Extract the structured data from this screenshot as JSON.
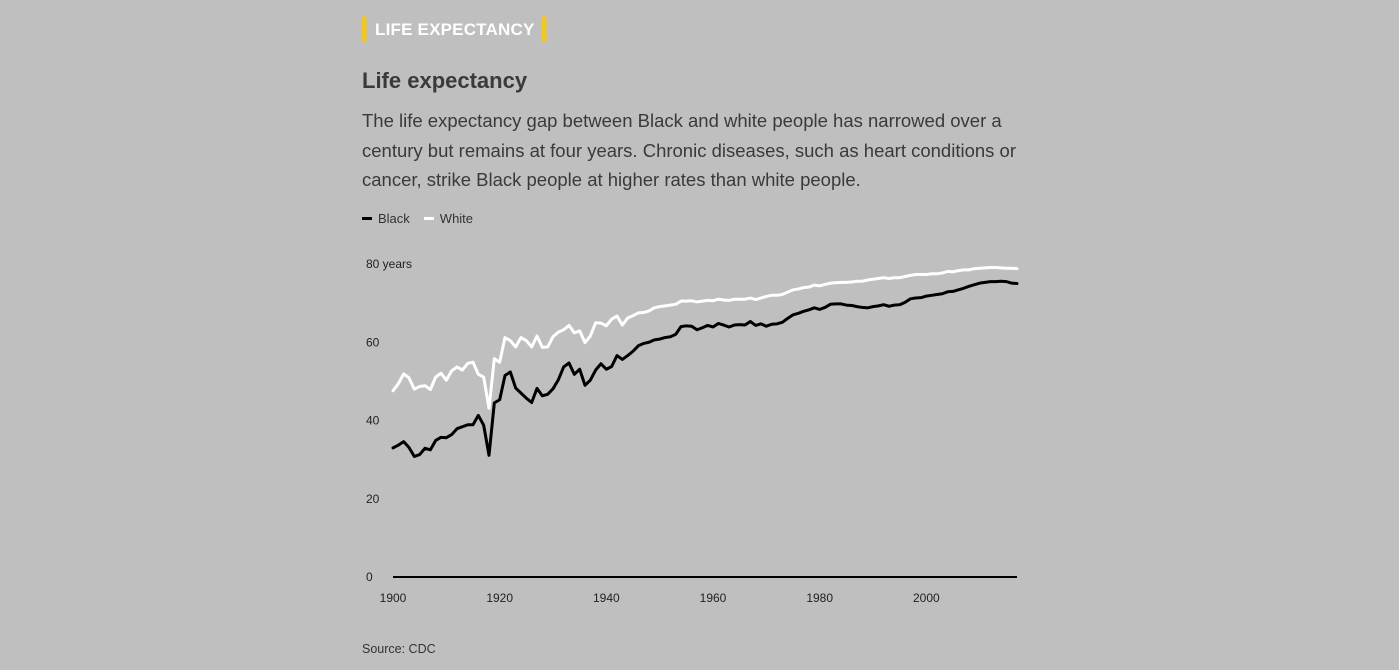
{
  "kicker": "LIFE EXPECTANCY",
  "title": "Life expectancy",
  "subtitle": "The life expectancy gap between Black and white people has narrowed over a century but remains at four years. Chronic diseases, such as heart conditions or cancer, strike Black people at higher rates than white people.",
  "source": "Source: CDC",
  "colors": {
    "background": "#bfbfbf",
    "kicker_accent": "#f2c81e",
    "black_series": "#000000",
    "white_series": "#ffffff"
  },
  "chart_data": {
    "type": "line",
    "title": "Life expectancy",
    "xlabel": "",
    "ylabel": "",
    "xlim": [
      1900,
      2017
    ],
    "ylim": [
      0,
      80
    ],
    "x_ticks": [
      {
        "value": 1900,
        "label": "1900"
      },
      {
        "value": 1920,
        "label": "1920"
      },
      {
        "value": 1940,
        "label": "1940"
      },
      {
        "value": 1960,
        "label": "1960"
      },
      {
        "value": 1980,
        "label": "1980"
      },
      {
        "value": 2000,
        "label": "2000"
      }
    ],
    "y_ticks": [
      {
        "value": 0,
        "label": "0"
      },
      {
        "value": 20,
        "label": "20"
      },
      {
        "value": 40,
        "label": "40"
      },
      {
        "value": 60,
        "label": "60"
      },
      {
        "value": 80,
        "label": "80 years"
      }
    ],
    "grid": false,
    "legend_placement": "top-left",
    "series": [
      {
        "name": "Black",
        "color": "#000000",
        "points": [
          [
            1900,
            33.0
          ],
          [
            1901,
            33.7
          ],
          [
            1902,
            34.6
          ],
          [
            1903,
            33.1
          ],
          [
            1904,
            30.8
          ],
          [
            1905,
            31.3
          ],
          [
            1906,
            32.9
          ],
          [
            1907,
            32.5
          ],
          [
            1908,
            34.9
          ],
          [
            1909,
            35.7
          ],
          [
            1910,
            35.6
          ],
          [
            1911,
            36.4
          ],
          [
            1912,
            37.9
          ],
          [
            1913,
            38.4
          ],
          [
            1914,
            38.9
          ],
          [
            1915,
            38.9
          ],
          [
            1916,
            41.3
          ],
          [
            1917,
            38.8
          ],
          [
            1918,
            31.1
          ],
          [
            1919,
            44.5
          ],
          [
            1920,
            45.3
          ],
          [
            1921,
            51.5
          ],
          [
            1922,
            52.4
          ],
          [
            1923,
            48.3
          ],
          [
            1924,
            47.0
          ],
          [
            1925,
            45.7
          ],
          [
            1926,
            44.6
          ],
          [
            1927,
            48.2
          ],
          [
            1928,
            46.3
          ],
          [
            1929,
            46.7
          ],
          [
            1930,
            48.1
          ],
          [
            1931,
            50.4
          ],
          [
            1932,
            53.7
          ],
          [
            1933,
            54.7
          ],
          [
            1934,
            51.8
          ],
          [
            1935,
            53.1
          ],
          [
            1936,
            49.0
          ],
          [
            1937,
            50.3
          ],
          [
            1938,
            52.9
          ],
          [
            1939,
            54.5
          ],
          [
            1940,
            53.1
          ],
          [
            1941,
            53.8
          ],
          [
            1942,
            56.6
          ],
          [
            1943,
            55.6
          ],
          [
            1944,
            56.6
          ],
          [
            1945,
            57.7
          ],
          [
            1946,
            59.1
          ],
          [
            1947,
            59.7
          ],
          [
            1948,
            60.0
          ],
          [
            1949,
            60.6
          ],
          [
            1950,
            60.8
          ],
          [
            1951,
            61.2
          ],
          [
            1952,
            61.4
          ],
          [
            1953,
            62.0
          ],
          [
            1954,
            64.0
          ],
          [
            1955,
            64.2
          ],
          [
            1956,
            64.1
          ],
          [
            1957,
            63.2
          ],
          [
            1958,
            63.7
          ],
          [
            1959,
            64.3
          ],
          [
            1960,
            63.9
          ],
          [
            1961,
            64.8
          ],
          [
            1962,
            64.4
          ],
          [
            1963,
            63.9
          ],
          [
            1964,
            64.4
          ],
          [
            1965,
            64.5
          ],
          [
            1966,
            64.4
          ],
          [
            1967,
            65.3
          ],
          [
            1968,
            64.3
          ],
          [
            1969,
            64.7
          ],
          [
            1970,
            64.1
          ],
          [
            1971,
            64.6
          ],
          [
            1972,
            64.7
          ],
          [
            1973,
            65.1
          ],
          [
            1974,
            66.1
          ],
          [
            1975,
            67.0
          ],
          [
            1976,
            67.4
          ],
          [
            1977,
            67.9
          ],
          [
            1978,
            68.3
          ],
          [
            1979,
            68.8
          ],
          [
            1980,
            68.4
          ],
          [
            1981,
            68.9
          ],
          [
            1982,
            69.7
          ],
          [
            1983,
            69.8
          ],
          [
            1984,
            69.8
          ],
          [
            1985,
            69.5
          ],
          [
            1986,
            69.4
          ],
          [
            1987,
            69.1
          ],
          [
            1988,
            68.9
          ],
          [
            1989,
            68.8
          ],
          [
            1990,
            69.1
          ],
          [
            1991,
            69.3
          ],
          [
            1992,
            69.6
          ],
          [
            1993,
            69.2
          ],
          [
            1994,
            69.5
          ],
          [
            1995,
            69.6
          ],
          [
            1996,
            70.2
          ],
          [
            1997,
            71.1
          ],
          [
            1998,
            71.3
          ],
          [
            1999,
            71.4
          ],
          [
            2000,
            71.8
          ],
          [
            2001,
            72.0
          ],
          [
            2002,
            72.2
          ],
          [
            2003,
            72.4
          ],
          [
            2004,
            72.9
          ],
          [
            2005,
            73.0
          ],
          [
            2006,
            73.4
          ],
          [
            2007,
            73.8
          ],
          [
            2008,
            74.3
          ],
          [
            2009,
            74.7
          ],
          [
            2010,
            75.1
          ],
          [
            2011,
            75.3
          ],
          [
            2012,
            75.5
          ],
          [
            2013,
            75.5
          ],
          [
            2014,
            75.6
          ],
          [
            2015,
            75.5
          ],
          [
            2016,
            75.1
          ],
          [
            2017,
            75.0
          ]
        ]
      },
      {
        "name": "White",
        "color": "#ffffff",
        "points": [
          [
            1900,
            47.6
          ],
          [
            1901,
            49.4
          ],
          [
            1902,
            51.9
          ],
          [
            1903,
            50.9
          ],
          [
            1904,
            48.0
          ],
          [
            1905,
            48.7
          ],
          [
            1906,
            48.9
          ],
          [
            1907,
            47.9
          ],
          [
            1908,
            51.1
          ],
          [
            1909,
            52.1
          ],
          [
            1910,
            50.3
          ],
          [
            1911,
            52.7
          ],
          [
            1912,
            53.7
          ],
          [
            1913,
            52.9
          ],
          [
            1914,
            54.6
          ],
          [
            1915,
            54.9
          ],
          [
            1916,
            51.8
          ],
          [
            1917,
            51.1
          ],
          [
            1918,
            43.1
          ],
          [
            1919,
            55.8
          ],
          [
            1920,
            54.9
          ],
          [
            1921,
            61.2
          ],
          [
            1922,
            60.4
          ],
          [
            1923,
            58.8
          ],
          [
            1924,
            61.2
          ],
          [
            1925,
            60.4
          ],
          [
            1926,
            58.8
          ],
          [
            1927,
            61.6
          ],
          [
            1928,
            58.7
          ],
          [
            1929,
            58.8
          ],
          [
            1930,
            61.4
          ],
          [
            1931,
            62.6
          ],
          [
            1932,
            63.2
          ],
          [
            1933,
            64.3
          ],
          [
            1934,
            62.4
          ],
          [
            1935,
            62.9
          ],
          [
            1936,
            59.9
          ],
          [
            1937,
            61.6
          ],
          [
            1938,
            65.0
          ],
          [
            1939,
            64.9
          ],
          [
            1940,
            64.2
          ],
          [
            1941,
            65.9
          ],
          [
            1942,
            66.7
          ],
          [
            1943,
            64.4
          ],
          [
            1944,
            66.2
          ],
          [
            1945,
            66.8
          ],
          [
            1946,
            67.5
          ],
          [
            1947,
            67.6
          ],
          [
            1948,
            68.0
          ],
          [
            1949,
            68.8
          ],
          [
            1950,
            69.1
          ],
          [
            1951,
            69.3
          ],
          [
            1952,
            69.5
          ],
          [
            1953,
            69.7
          ],
          [
            1954,
            70.5
          ],
          [
            1955,
            70.5
          ],
          [
            1956,
            70.6
          ],
          [
            1957,
            70.3
          ],
          [
            1958,
            70.5
          ],
          [
            1959,
            70.7
          ],
          [
            1960,
            70.6
          ],
          [
            1961,
            71.0
          ],
          [
            1962,
            70.8
          ],
          [
            1963,
            70.7
          ],
          [
            1964,
            71.0
          ],
          [
            1965,
            71.0
          ],
          [
            1966,
            71.0
          ],
          [
            1967,
            71.3
          ],
          [
            1968,
            70.9
          ],
          [
            1969,
            71.3
          ],
          [
            1970,
            71.7
          ],
          [
            1971,
            72.0
          ],
          [
            1972,
            72.0
          ],
          [
            1973,
            72.2
          ],
          [
            1974,
            72.8
          ],
          [
            1975,
            73.4
          ],
          [
            1976,
            73.6
          ],
          [
            1977,
            74.0
          ],
          [
            1978,
            74.1
          ],
          [
            1979,
            74.6
          ],
          [
            1980,
            74.4
          ],
          [
            1981,
            74.8
          ],
          [
            1982,
            75.1
          ],
          [
            1983,
            75.2
          ],
          [
            1984,
            75.3
          ],
          [
            1985,
            75.3
          ],
          [
            1986,
            75.4
          ],
          [
            1987,
            75.6
          ],
          [
            1988,
            75.6
          ],
          [
            1989,
            75.9
          ],
          [
            1990,
            76.1
          ],
          [
            1991,
            76.3
          ],
          [
            1992,
            76.5
          ],
          [
            1993,
            76.3
          ],
          [
            1994,
            76.5
          ],
          [
            1995,
            76.5
          ],
          [
            1996,
            76.8
          ],
          [
            1997,
            77.1
          ],
          [
            1998,
            77.3
          ],
          [
            1999,
            77.3
          ],
          [
            2000,
            77.3
          ],
          [
            2001,
            77.5
          ],
          [
            2002,
            77.5
          ],
          [
            2003,
            77.7
          ],
          [
            2004,
            78.1
          ],
          [
            2005,
            78.0
          ],
          [
            2006,
            78.3
          ],
          [
            2007,
            78.5
          ],
          [
            2008,
            78.5
          ],
          [
            2009,
            78.8
          ],
          [
            2010,
            78.9
          ],
          [
            2011,
            79.0
          ],
          [
            2012,
            79.1
          ],
          [
            2013,
            79.1
          ],
          [
            2014,
            79.0
          ],
          [
            2015,
            78.9
          ],
          [
            2016,
            78.9
          ],
          [
            2017,
            78.8
          ]
        ]
      }
    ]
  }
}
